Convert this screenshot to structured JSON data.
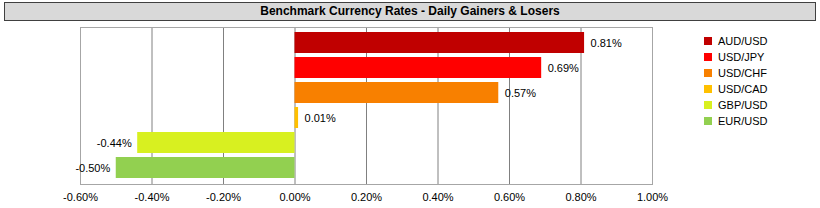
{
  "chart_data": {
    "type": "bar",
    "title": "Benchmark Currency Rates - Daily Gainers & Losers",
    "orientation": "horizontal",
    "categories": [
      "AUD/USD",
      "USD/JPY",
      "USD/CHF",
      "USD/CAD",
      "GBP/USD",
      "EUR/USD"
    ],
    "values": [
      0.81,
      0.69,
      0.57,
      0.01,
      -0.44,
      -0.5
    ],
    "value_labels": [
      "0.81%",
      "0.69%",
      "0.57%",
      "0.01%",
      "-0.44%",
      "-0.50%"
    ],
    "colors": [
      "#c00000",
      "#ff0000",
      "#f88000",
      "#ffc000",
      "#d8f020",
      "#92d050"
    ],
    "xlim": [
      -0.6,
      1.0
    ],
    "xticks": [
      {
        "value": -0.6,
        "label": "-0.60%"
      },
      {
        "value": -0.4,
        "label": "-0.40%"
      },
      {
        "value": -0.2,
        "label": "-0.20%"
      },
      {
        "value": 0,
        "label": "0.00%"
      },
      {
        "value": 0.2,
        "label": "0.20%"
      },
      {
        "value": 0.4,
        "label": "0.40%"
      },
      {
        "value": 0.6,
        "label": "0.60%"
      },
      {
        "value": 0.8,
        "label": "0.80%"
      },
      {
        "value": 1.0,
        "label": "1.00%"
      }
    ],
    "grid": true,
    "data_labels": true,
    "legend": "right",
    "tick_labels": "x"
  }
}
